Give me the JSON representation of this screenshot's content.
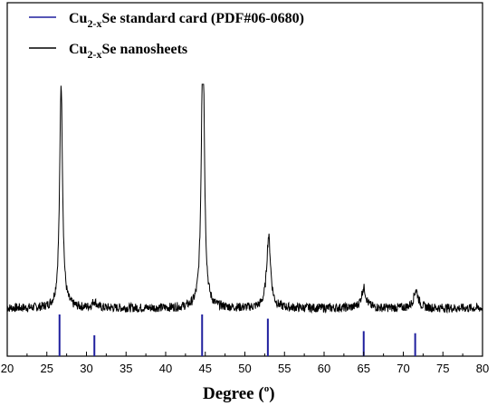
{
  "chart_data": {
    "type": "line",
    "xlabel": "Degree (°)",
    "ylabel": "",
    "xlim": [
      20,
      80
    ],
    "x_ticks": [
      "20",
      "25",
      "30",
      "35",
      "40",
      "45",
      "50",
      "55",
      "60",
      "65",
      "70",
      "75",
      "80"
    ],
    "legend_position": "top-left",
    "grid": false,
    "series": [
      {
        "name": "Cu2-xSe nanosheets",
        "kind": "xrd-profile",
        "color": "#000000",
        "baseline": 0.2,
        "noise_amplitude": 0.02,
        "peaks": [
          {
            "two_theta": 26.8,
            "intensity": 1.0,
            "width": 0.22
          },
          {
            "two_theta": 31.0,
            "intensity": 0.03,
            "width": 0.3
          },
          {
            "two_theta": 44.7,
            "intensity": 1.3,
            "width": 0.22
          },
          {
            "two_theta": 53.0,
            "intensity": 0.32,
            "width": 0.3
          },
          {
            "two_theta": 65.0,
            "intensity": 0.09,
            "width": 0.35
          },
          {
            "two_theta": 71.6,
            "intensity": 0.08,
            "width": 0.35
          }
        ]
      },
      {
        "name": "Cu2-xSe standard card (PDF#06-0680)",
        "kind": "stick",
        "color": "#1f1f9e",
        "x": [
          26.6,
          31.0,
          44.6,
          52.9,
          65.0,
          71.5
        ],
        "values": [
          1.0,
          0.5,
          1.0,
          0.9,
          0.6,
          0.55
        ]
      }
    ]
  },
  "legend": {
    "items": [
      {
        "prefix": "Cu",
        "subscript": "2-x",
        "suffix": "Se standard card (PDF#06-0680)",
        "color": "#1f1f9e"
      },
      {
        "prefix": "Cu",
        "subscript": "2-x",
        "suffix": "Se nanosheets",
        "color": "#000000"
      }
    ]
  },
  "axis_title": {
    "text": "Degree (",
    "degree_mark": "o",
    "close": ")"
  }
}
